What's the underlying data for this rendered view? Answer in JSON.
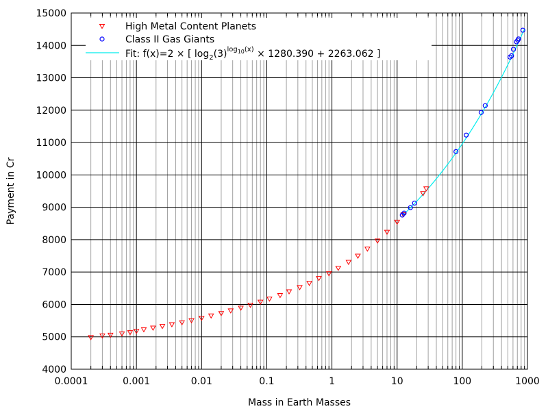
{
  "chart_data": {
    "type": "scatter",
    "xlabel": "Mass in Earth Masses",
    "ylabel": "Payment in Cr",
    "xscale": "log",
    "xlim": [
      0.0001,
      1000
    ],
    "ylim": [
      4000,
      15000
    ],
    "grid": true,
    "legend_position": "top-left",
    "x_ticks": [
      "0.0001",
      "0.001",
      "0.01",
      "0.1",
      "1",
      "10",
      "100",
      "1000"
    ],
    "y_ticks": [
      "4000",
      "5000",
      "6000",
      "7000",
      "8000",
      "9000",
      "10000",
      "11000",
      "12000",
      "13000",
      "14000",
      "15000"
    ],
    "fit": {
      "name": "Fit: f(x)=2 × [ log2(3)log10(x) × 1280.390 + 2263.062 ]",
      "label_pre": "Fit: f(x)=2 × [ log",
      "label_sub": "2",
      "label_mid": "(3)",
      "label_sup": "log",
      "label_sup_sub": "10",
      "label_sup_end": "(x)",
      "label_post": " × 1280.390 + 2263.062 ]",
      "base": 1.584963,
      "a": 1280.39,
      "b": 2263.062,
      "x_range": [
        12,
        900
      ],
      "color": "#00eeee"
    },
    "series": [
      {
        "name": "High Metal Content Planets",
        "marker": "triangle-down",
        "color": "#ff0000",
        "x": [
          0.0002,
          0.0003,
          0.0004,
          0.0006,
          0.0008,
          0.001,
          0.0013,
          0.0018,
          0.0025,
          0.0035,
          0.005,
          0.007,
          0.01,
          0.014,
          0.02,
          0.028,
          0.04,
          0.056,
          0.08,
          0.11,
          0.16,
          0.22,
          0.32,
          0.45,
          0.63,
          0.9,
          1.25,
          1.8,
          2.5,
          3.5,
          5,
          7,
          10,
          12.5,
          25,
          28
        ],
        "y": [
          4985,
          5040,
          5060,
          5100,
          5140,
          5180,
          5230,
          5280,
          5330,
          5385,
          5445,
          5510,
          5580,
          5655,
          5730,
          5810,
          5895,
          5985,
          6080,
          6175,
          6285,
          6400,
          6530,
          6660,
          6810,
          6960,
          7125,
          7310,
          7500,
          7720,
          7970,
          8240,
          8550,
          8780,
          9430,
          9580
        ]
      },
      {
        "name": "Class II Gas Giants",
        "marker": "circle",
        "color": "#0000ff",
        "x": [
          12,
          12.8,
          16,
          18.5,
          80,
          115,
          195,
          225,
          540,
          570,
          610,
          680,
          710,
          730,
          850
        ],
        "y": [
          8760,
          8820,
          8990,
          9130,
          10720,
          11230,
          11930,
          12140,
          13640,
          13680,
          13880,
          14110,
          14160,
          14200,
          14470
        ]
      }
    ]
  }
}
